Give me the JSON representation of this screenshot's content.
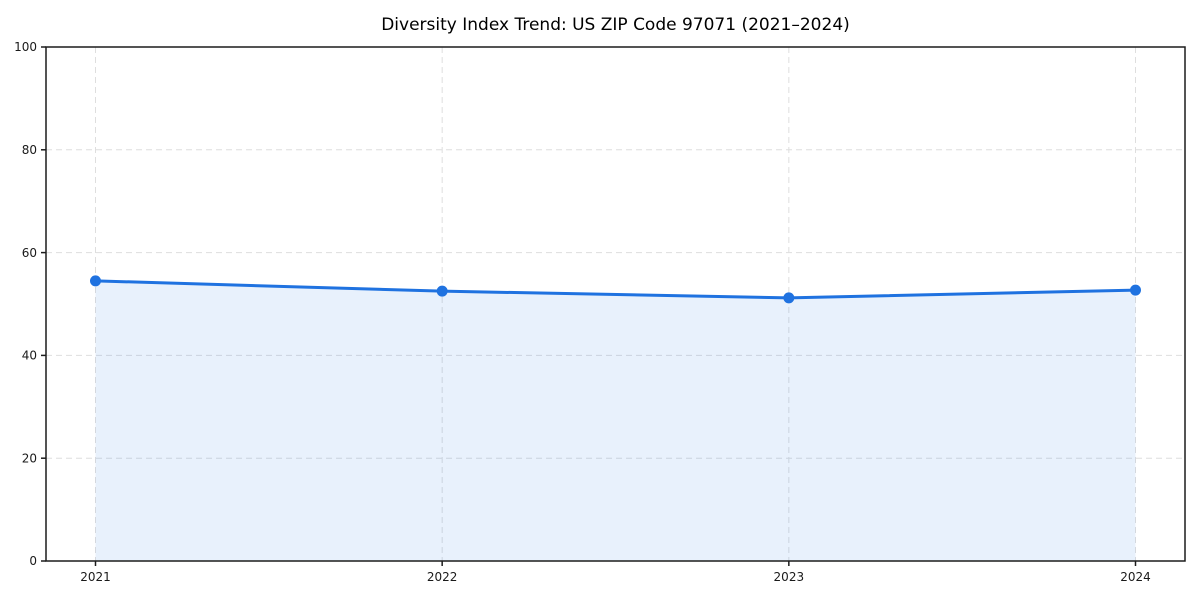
{
  "chart": {
    "title": "Diversity Index Trend: US ZIP Code 97071 (2021–2024)"
  },
  "chart_data": {
    "type": "line",
    "title": "Diversity Index Trend: US ZIP Code 97071 (2021–2024)",
    "x": [
      2021,
      2022,
      2023,
      2024
    ],
    "xtick_labels": [
      "2021",
      "2022",
      "2023",
      "2024"
    ],
    "series": [
      {
        "name": "Diversity Index",
        "values": [
          54.5,
          52.5,
          51.2,
          52.7
        ]
      }
    ],
    "xlabel": "",
    "ylabel": "",
    "ylim": [
      0,
      100
    ],
    "yticks": [
      0,
      20,
      40,
      60,
      80,
      100
    ],
    "ytick_labels": [
      "0",
      "20",
      "40",
      "60",
      "80",
      "100"
    ],
    "grid": true,
    "grid_style": "dashed",
    "legend_position": "none",
    "area_fill": true,
    "marker": "circle",
    "colors": {
      "line": "#1f72e0",
      "marker": "#1f72e0",
      "fill": "rgba(31,114,224,0.10)",
      "grid": "#dedede",
      "spine": "#1c1c1c",
      "tick": "#1c1c1c",
      "tick_label": "#1a1a1a",
      "title": "#000000",
      "background": "#ffffff"
    }
  }
}
